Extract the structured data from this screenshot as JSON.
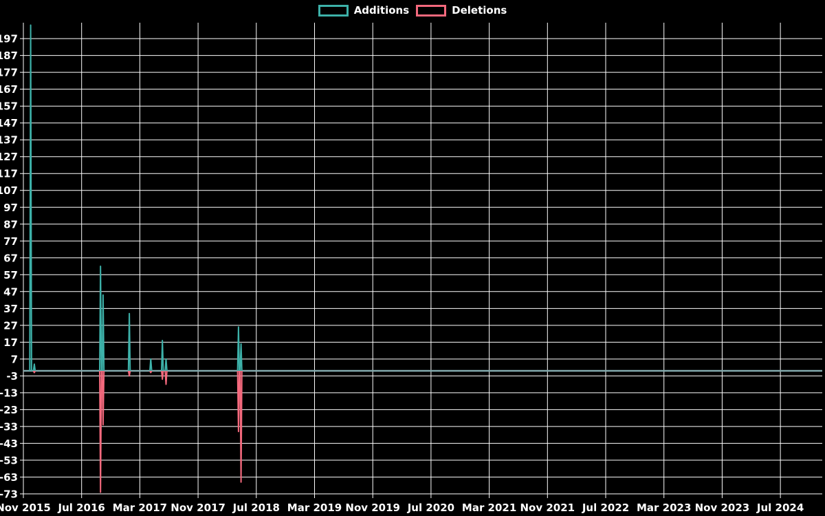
{
  "chart_data": {
    "type": "line",
    "title": "",
    "background_color": "#000000",
    "grid": true,
    "grid_color": "#ffffff",
    "text_color": "#ffffff",
    "baseline_value": 0,
    "baseline_overlap_color": "#83aaae",
    "legend_position": "top-center",
    "x_tick_labels": [
      "Nov 2015",
      "Jul 2016",
      "Mar 2017",
      "Nov 2017",
      "Jul 2018",
      "Mar 2019",
      "Nov 2019",
      "Jul 2020",
      "Mar 2021",
      "Nov 2021",
      "Jul 2022",
      "Mar 2023",
      "Nov 2023",
      "Jul 2024"
    ],
    "x_tick_interval_months": 8,
    "x_range": [
      "Nov 2015",
      "Dec 2024"
    ],
    "y_tick_labels": [
      -73,
      -63,
      -53,
      -43,
      -33,
      -23,
      -13,
      -3,
      7,
      17,
      27,
      37,
      47,
      57,
      67,
      77,
      87,
      97,
      107,
      117,
      127,
      137,
      147,
      157,
      167,
      177,
      187,
      197
    ],
    "ylim": [
      -75,
      207
    ],
    "series": [
      {
        "name": "Additions",
        "color": "#3db1a9",
        "points": [
          {
            "date": "Dec 2015",
            "month_offset": 1.0,
            "value": 205
          },
          {
            "date": "Dec 2015",
            "month_offset": 1.5,
            "value": 4
          },
          {
            "date": "Sep 2016",
            "month_offset": 10.6,
            "value": 62
          },
          {
            "date": "Oct 2016",
            "month_offset": 10.95,
            "value": 45
          },
          {
            "date": "Jan 2017",
            "month_offset": 14.55,
            "value": 34
          },
          {
            "date": "Apr 2017",
            "month_offset": 17.5,
            "value": 7
          },
          {
            "date": "Jun 2017",
            "month_offset": 19.1,
            "value": 18
          },
          {
            "date": "Jun 2017",
            "month_offset": 19.6,
            "value": 7
          },
          {
            "date": "Apr 2018",
            "month_offset": 29.55,
            "value": 26
          },
          {
            "date": "May 2018",
            "month_offset": 29.9,
            "value": 16
          }
        ]
      },
      {
        "name": "Deletions",
        "color": "#f4697d",
        "points": [
          {
            "date": "Dec 2015",
            "month_offset": 1.5,
            "value": -1
          },
          {
            "date": "Sep 2016",
            "month_offset": 10.6,
            "value": -72
          },
          {
            "date": "Oct 2016",
            "month_offset": 10.95,
            "value": -32
          },
          {
            "date": "Jan 2017",
            "month_offset": 14.55,
            "value": -3
          },
          {
            "date": "Apr 2017",
            "month_offset": 17.5,
            "value": -1
          },
          {
            "date": "Jun 2017",
            "month_offset": 19.1,
            "value": -5
          },
          {
            "date": "Jun 2017",
            "month_offset": 19.6,
            "value": -8
          },
          {
            "date": "Apr 2018",
            "month_offset": 29.55,
            "value": -36
          },
          {
            "date": "May 2018",
            "month_offset": 29.9,
            "value": -66
          }
        ]
      }
    ]
  }
}
